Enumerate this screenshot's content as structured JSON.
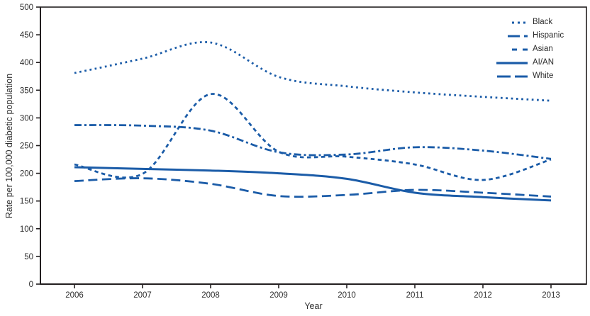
{
  "figure": {
    "xlabel": "Year",
    "ylabel": "Rate per 100,000 diabetic population"
  },
  "colors": {
    "line": "#1b5ca8",
    "text": "#2d2d2d",
    "frame": "#231f20",
    "background": "#ffffff"
  },
  "chart_data": {
    "type": "line",
    "title": "",
    "xlabel": "Year",
    "ylabel": "Rate per 100,000 diabetic population",
    "x": [
      2006,
      2007,
      2008,
      2009,
      2010,
      2011,
      2012,
      2013
    ],
    "ylim": [
      0,
      500
    ],
    "ytick_step": 50,
    "grid": false,
    "legend_position": "top-right-inside",
    "line_color": "#1b5ca8",
    "series": [
      {
        "name": "Black",
        "style": "dotted",
        "values": [
          381,
          407,
          436,
          374,
          357,
          346,
          338,
          331
        ]
      },
      {
        "name": "Hispanic",
        "style": "dashdot",
        "values": [
          287,
          286,
          277,
          238,
          234,
          247,
          241,
          226
        ]
      },
      {
        "name": "Asian",
        "style": "dash",
        "values": [
          216,
          199,
          343,
          239,
          230,
          216,
          188,
          225
        ]
      },
      {
        "name": "AI/AN",
        "style": "solid",
        "values": [
          211,
          208,
          205,
          200,
          190,
          165,
          157,
          151
        ]
      },
      {
        "name": "White",
        "style": "longdash",
        "values": [
          186,
          191,
          181,
          159,
          161,
          170,
          165,
          158
        ]
      }
    ]
  }
}
